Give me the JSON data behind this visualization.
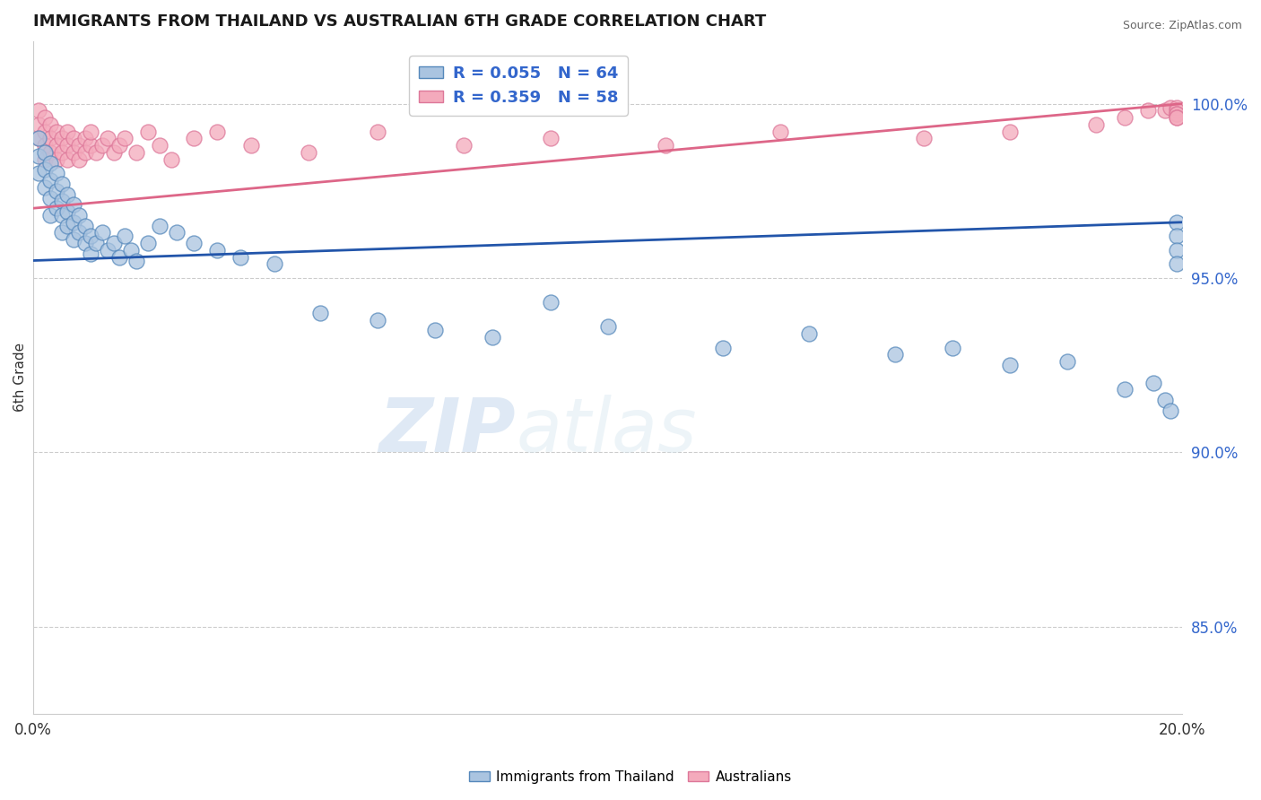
{
  "title": "IMMIGRANTS FROM THAILAND VS AUSTRALIAN 6TH GRADE CORRELATION CHART",
  "source": "Source: ZipAtlas.com",
  "ylabel": "6th Grade",
  "xlim": [
    0.0,
    0.2
  ],
  "ylim": [
    0.825,
    1.018
  ],
  "yticks": [
    0.85,
    0.9,
    0.95,
    1.0
  ],
  "ytick_labels": [
    "85.0%",
    "90.0%",
    "95.0%",
    "100.0%"
  ],
  "xticks": [
    0.0,
    0.05,
    0.1,
    0.15,
    0.2
  ],
  "xtick_labels": [
    "0.0%",
    "",
    "",
    "",
    "20.0%"
  ],
  "blue_R": 0.055,
  "blue_N": 64,
  "pink_R": 0.359,
  "pink_N": 58,
  "blue_color": "#aac4e0",
  "pink_color": "#f4aabc",
  "blue_edge_color": "#5588bb",
  "pink_edge_color": "#dd7799",
  "blue_line_color": "#2255aa",
  "pink_line_color": "#dd6688",
  "legend_blue_label": "Immigrants from Thailand",
  "legend_pink_label": "Australians",
  "watermark_zip": "ZIP",
  "watermark_atlas": "atlas",
  "blue_x": [
    0.001,
    0.001,
    0.001,
    0.002,
    0.002,
    0.002,
    0.003,
    0.003,
    0.003,
    0.003,
    0.004,
    0.004,
    0.004,
    0.005,
    0.005,
    0.005,
    0.005,
    0.006,
    0.006,
    0.006,
    0.007,
    0.007,
    0.007,
    0.008,
    0.008,
    0.009,
    0.009,
    0.01,
    0.01,
    0.011,
    0.012,
    0.013,
    0.014,
    0.015,
    0.016,
    0.017,
    0.018,
    0.02,
    0.022,
    0.025,
    0.028,
    0.032,
    0.036,
    0.042,
    0.05,
    0.06,
    0.07,
    0.08,
    0.09,
    0.1,
    0.12,
    0.135,
    0.15,
    0.16,
    0.17,
    0.18,
    0.19,
    0.195,
    0.197,
    0.198,
    0.199,
    0.199,
    0.199,
    0.199
  ],
  "blue_y": [
    0.99,
    0.985,
    0.98,
    0.986,
    0.981,
    0.976,
    0.983,
    0.978,
    0.973,
    0.968,
    0.98,
    0.975,
    0.97,
    0.977,
    0.972,
    0.968,
    0.963,
    0.974,
    0.969,
    0.965,
    0.971,
    0.966,
    0.961,
    0.968,
    0.963,
    0.965,
    0.96,
    0.962,
    0.957,
    0.96,
    0.963,
    0.958,
    0.96,
    0.956,
    0.962,
    0.958,
    0.955,
    0.96,
    0.965,
    0.963,
    0.96,
    0.958,
    0.956,
    0.954,
    0.94,
    0.938,
    0.935,
    0.933,
    0.943,
    0.936,
    0.93,
    0.934,
    0.928,
    0.93,
    0.925,
    0.926,
    0.918,
    0.92,
    0.915,
    0.912,
    0.966,
    0.962,
    0.958,
    0.954
  ],
  "pink_x": [
    0.001,
    0.001,
    0.001,
    0.002,
    0.002,
    0.002,
    0.002,
    0.003,
    0.003,
    0.003,
    0.004,
    0.004,
    0.004,
    0.005,
    0.005,
    0.006,
    0.006,
    0.006,
    0.007,
    0.007,
    0.008,
    0.008,
    0.009,
    0.009,
    0.01,
    0.01,
    0.011,
    0.012,
    0.013,
    0.014,
    0.015,
    0.016,
    0.018,
    0.02,
    0.022,
    0.024,
    0.028,
    0.032,
    0.038,
    0.048,
    0.06,
    0.075,
    0.09,
    0.11,
    0.13,
    0.155,
    0.17,
    0.185,
    0.19,
    0.194,
    0.197,
    0.198,
    0.199,
    0.199,
    0.199,
    0.199,
    0.199,
    0.199
  ],
  "pink_y": [
    0.998,
    0.994,
    0.99,
    0.996,
    0.992,
    0.988,
    0.984,
    0.994,
    0.99,
    0.986,
    0.992,
    0.988,
    0.984,
    0.99,
    0.986,
    0.992,
    0.988,
    0.984,
    0.99,
    0.986,
    0.988,
    0.984,
    0.99,
    0.986,
    0.988,
    0.992,
    0.986,
    0.988,
    0.99,
    0.986,
    0.988,
    0.99,
    0.986,
    0.992,
    0.988,
    0.984,
    0.99,
    0.992,
    0.988,
    0.986,
    0.992,
    0.988,
    0.99,
    0.988,
    0.992,
    0.99,
    0.992,
    0.994,
    0.996,
    0.998,
    0.998,
    0.999,
    0.999,
    0.998,
    0.997,
    0.997,
    0.996,
    0.996
  ]
}
